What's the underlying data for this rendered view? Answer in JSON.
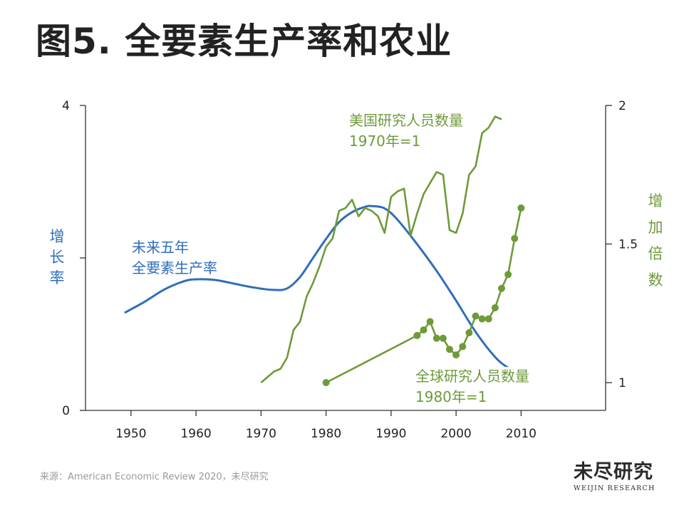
{
  "slide": {
    "title": "图5. 全要素生产率和农业",
    "source": "来源：American Economic Review 2020，未尽研究",
    "logo_main": "未尽研究",
    "logo_sub": "WEIJIN RESEARCH"
  },
  "chart_data": {
    "type": "line",
    "x_ticks": [
      "1950",
      "1960",
      "1970",
      "1980",
      "1990",
      "2000",
      "2010"
    ],
    "xlim": [
      1943,
      2023
    ],
    "y_left": {
      "label_chars": [
        "增",
        "长",
        "率"
      ],
      "ticks": [
        "0",
        "4"
      ],
      "ylim": [
        0,
        4
      ],
      "color": "#2F6EBA"
    },
    "y_right": {
      "label_chars": [
        "增",
        "加",
        "倍",
        "数"
      ],
      "ticks": [
        "1",
        "1.5",
        "2"
      ],
      "ylim": [
        0.9,
        2.0
      ],
      "color": "#6E9A3A"
    },
    "series": [
      {
        "name_lines": [
          "未来五年",
          "全要素生产率"
        ],
        "axis": "left",
        "color": "#2F6EBA",
        "marker": "none",
        "x": [
          1949,
          1952,
          1955,
          1958,
          1960,
          1963,
          1966,
          1969,
          1972,
          1974,
          1976,
          1978,
          1980,
          1982,
          1984,
          1986,
          1987,
          1989,
          1991,
          1994,
          1997,
          2000,
          2003,
          2006,
          2008,
          2010
        ],
        "y": [
          1.28,
          1.42,
          1.58,
          1.69,
          1.72,
          1.71,
          1.66,
          1.61,
          1.58,
          1.6,
          1.75,
          2.0,
          2.25,
          2.47,
          2.6,
          2.67,
          2.68,
          2.65,
          2.5,
          2.18,
          1.83,
          1.44,
          1.03,
          0.7,
          0.56,
          0.47
        ]
      },
      {
        "name_lines": [
          "美国研究人员数量",
          "1970年=1"
        ],
        "axis": "right",
        "color": "#6E9A3A",
        "marker": "none",
        "x": [
          1970,
          1972,
          1973,
          1974,
          1975,
          1976,
          1977,
          1978,
          1979,
          1980,
          1981,
          1982,
          1983,
          1984,
          1985,
          1986,
          1987,
          1988,
          1989,
          1990,
          1991,
          1992,
          1993,
          1994,
          1995,
          1996,
          1997,
          1998,
          1999,
          2000,
          2001,
          2002,
          2003,
          2004,
          2005,
          2006,
          2007
        ],
        "y": [
          1.0,
          1.04,
          1.05,
          1.09,
          1.19,
          1.22,
          1.31,
          1.36,
          1.42,
          1.49,
          1.52,
          1.62,
          1.63,
          1.66,
          1.6,
          1.63,
          1.62,
          1.6,
          1.54,
          1.67,
          1.69,
          1.7,
          1.53,
          1.61,
          1.68,
          1.72,
          1.76,
          1.75,
          1.55,
          1.54,
          1.61,
          1.75,
          1.78,
          1.9,
          1.92,
          1.96,
          1.95
        ]
      },
      {
        "name_lines": [
          "全球研究人员数量",
          "1980年=1"
        ],
        "axis": "right",
        "color": "#6E9A3A",
        "marker": "circle",
        "x": [
          1980,
          1994,
          1995,
          1996,
          1997,
          1998,
          1999,
          2000,
          2001,
          2002,
          2003,
          2004,
          2005,
          2006,
          2007,
          2008,
          2009,
          2010
        ],
        "y": [
          1.0,
          1.17,
          1.19,
          1.22,
          1.16,
          1.16,
          1.12,
          1.1,
          1.13,
          1.18,
          1.24,
          1.23,
          1.23,
          1.27,
          1.34,
          1.39,
          1.52,
          1.63
        ]
      }
    ]
  }
}
